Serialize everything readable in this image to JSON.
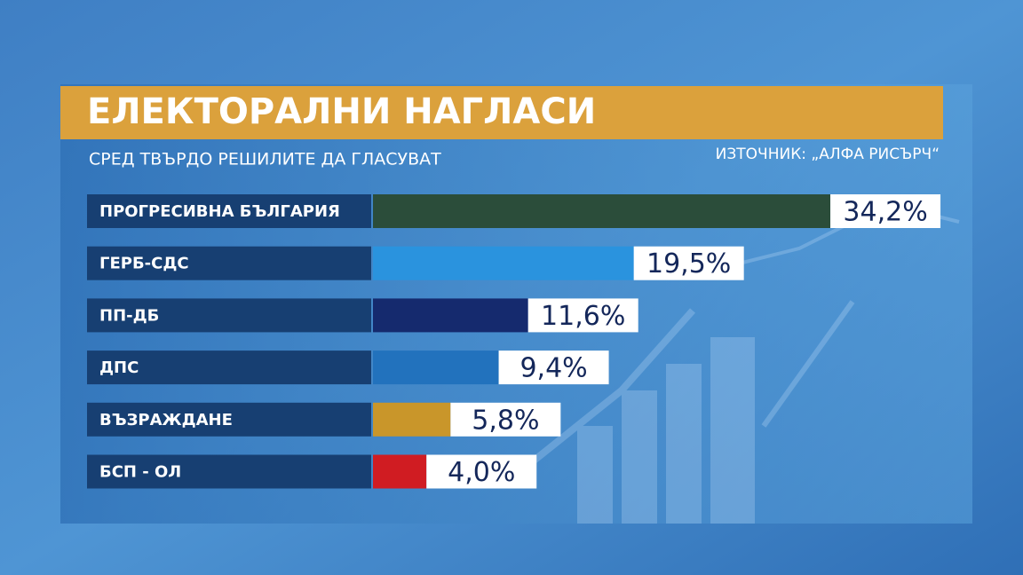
{
  "chart_data": {
    "type": "bar",
    "orientation": "horizontal",
    "title": "ЕЛЕКТОРАЛНИ НАГЛАСИ",
    "subtitle": "СРЕД ТВЪРДО РЕШИЛИТЕ ДА ГЛАСУВАТ",
    "source": "ИЗТОЧНИК: „АЛФА РИСЪРЧ“",
    "categories": [
      "ПРОГРЕСИВНА БЪЛГАРИЯ",
      "ГЕРБ-СДС",
      "ПП-ДБ",
      "ДПС",
      "ВЪЗРАЖДАНЕ",
      "БСП - ОЛ"
    ],
    "values": [
      34.2,
      19.5,
      11.6,
      9.4,
      5.8,
      4.0
    ],
    "value_labels": [
      "34,2%",
      "19,5%",
      "11,6%",
      "9,4%",
      "5,8%",
      "4,0%"
    ],
    "colors": [
      "#2b4d3a",
      "#2a93de",
      "#152a6e",
      "#2272bd",
      "#c9962a",
      "#d01c22"
    ]
  }
}
